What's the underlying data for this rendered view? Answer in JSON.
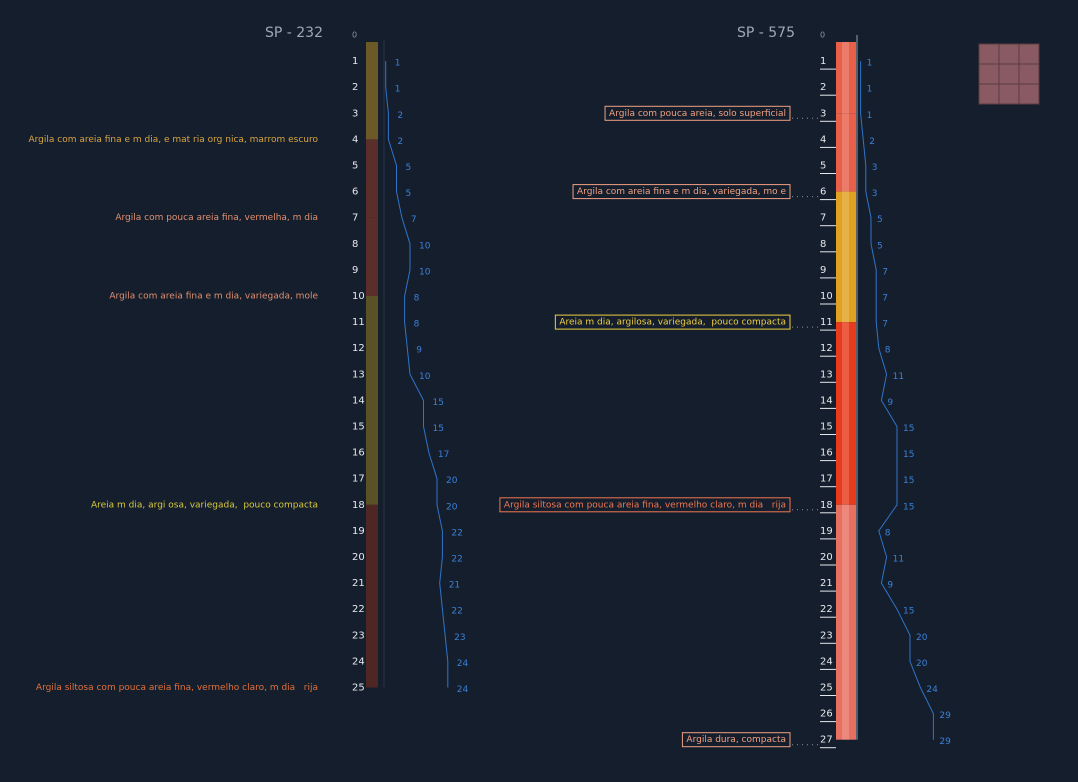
{
  "boreholes": [
    {
      "name": "SP - 232",
      "depths": [
        0,
        1,
        2,
        3,
        4,
        5,
        6,
        7,
        8,
        9,
        10,
        11,
        12,
        13,
        14,
        15,
        16,
        17,
        18,
        19,
        20,
        21,
        22,
        23,
        24,
        25
      ],
      "spt": [
        1,
        1,
        2,
        2,
        5,
        5,
        7,
        10,
        10,
        8,
        8,
        9,
        10,
        15,
        15,
        17,
        20,
        20,
        22,
        22,
        21,
        22,
        23,
        24,
        24
      ],
      "layers": [
        {
          "top": 0,
          "bottom": 4,
          "color": "#6b5a27",
          "label_color": "#d9a441",
          "label": "Argila com areia fina e m dia, e mat ria org nica, marrom escuro"
        },
        {
          "top": 4,
          "bottom": 7,
          "color": "#5a2f2a",
          "label_color": "#e0906e",
          "label": "Argila com pouca areia fina, vermelha, m dia"
        },
        {
          "top": 7,
          "bottom": 10,
          "color": "#5a2f2a",
          "label_color": "#e0906e",
          "label": "Argila com areia fina e m dia, variegada, mole"
        },
        {
          "top": 10,
          "bottom": 18,
          "color": "#5a5226",
          "label_color": "#d8c83a",
          "label": "Areia m dia, argi osa, variegada,  pouco compacta"
        },
        {
          "top": 18,
          "bottom": 25,
          "color": "#4e2624",
          "label_color": "#e0703a",
          "label": "Argila siltosa com pouca areia fina, vermelho claro, m dia   rija"
        }
      ]
    },
    {
      "name": "SP - 575",
      "depths": [
        0,
        1,
        2,
        3,
        4,
        5,
        6,
        7,
        8,
        9,
        10,
        11,
        12,
        13,
        14,
        15,
        16,
        17,
        18,
        19,
        20,
        21,
        22,
        23,
        24,
        25,
        26,
        27
      ],
      "spt": [
        1,
        1,
        1,
        2,
        3,
        3,
        5,
        5,
        7,
        7,
        7,
        8,
        11,
        9,
        15,
        15,
        15,
        15,
        8,
        11,
        9,
        15,
        20,
        20,
        24,
        29,
        29
      ],
      "layers": [
        {
          "top": 0,
          "bottom": 3,
          "color": "#e8604a",
          "label_color": "#f0a080",
          "label": "Argila com pouca areia, solo superficial"
        },
        {
          "top": 3,
          "bottom": 6,
          "color": "#e8604a",
          "label_color": "#f0a080",
          "label": "Argila com areia fina e m dia, variegada, mo e"
        },
        {
          "top": 6,
          "bottom": 11,
          "color": "#e0a020",
          "label_color": "#f0d040",
          "label": "Areia m dia, argilosa, variegada,  pouco compacta"
        },
        {
          "top": 11,
          "bottom": 18,
          "color": "#e83a1c",
          "label_color": "#f07850",
          "label": "Argila siltosa com pouca areia fina, vermelho claro, m dia   rija"
        },
        {
          "top": 18,
          "bottom": 27,
          "color": "#e87060",
          "label_color": "#f0a080",
          "label": "Argila dura, compacta"
        }
      ]
    }
  ]
}
